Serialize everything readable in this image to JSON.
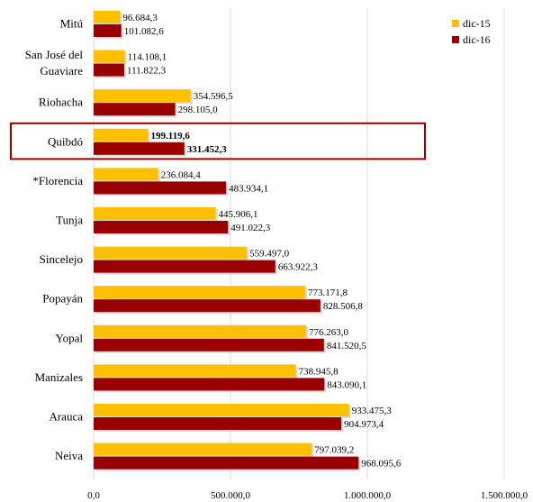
{
  "chart_data": {
    "type": "bar",
    "orientation": "horizontal",
    "categories": [
      "Mitú",
      "San José del Guaviare",
      "Riohacha",
      "Quibdó",
      "*Florencia",
      "Tunja",
      "Sincelejo",
      "Popayán",
      "Yopal",
      "Manizales",
      "Arauca",
      "Neiva"
    ],
    "category_lines": [
      [
        "Mitú"
      ],
      [
        "San José del",
        "Guaviare"
      ],
      [
        "Riohacha"
      ],
      [
        "Quibdó"
      ],
      [
        "*Florencia"
      ],
      [
        "Tunja"
      ],
      [
        "Sincelejo"
      ],
      [
        "Popayán"
      ],
      [
        "Yopal"
      ],
      [
        "Manizales"
      ],
      [
        "Arauca"
      ],
      [
        "Neiva"
      ]
    ],
    "series": [
      {
        "name": "dic-15",
        "color": "#FFC000",
        "values": [
          96684.3,
          114108.1,
          354596.5,
          199119.6,
          236084.4,
          445906.1,
          559497.0,
          773171.8,
          776263.0,
          738945.8,
          933475.3,
          797039.2
        ],
        "labels": [
          "96.684,3",
          "114.108,1",
          "354.596,5",
          "199.119,6",
          "236.084,4",
          "445.906,1",
          "559.497,0",
          "773.171,8",
          "776.263,0",
          "738.945,8",
          "933.475,3",
          "797.039,2"
        ]
      },
      {
        "name": "dic-16",
        "color": "#990000",
        "values": [
          101082.6,
          111822.3,
          298105.0,
          331452.3,
          483934.1,
          491022.3,
          663922.3,
          828506.8,
          841520.5,
          843090.1,
          904973.4,
          968095.6
        ],
        "labels": [
          "101.082,6",
          "111.822,3",
          "298.105,0",
          "331.452,3",
          "483.934,1",
          "491.022,3",
          "663.922,3",
          "828.506,8",
          "841.520,5",
          "843.090,1",
          "904.973,4",
          "968.095,6"
        ]
      }
    ],
    "xlim": [
      0,
      1500000
    ],
    "xticks": [
      0,
      500000,
      1000000,
      1500000
    ],
    "xtick_labels": [
      "0,0",
      "500.000,0",
      "1.000.000,0",
      "1.500.000,0"
    ],
    "grid": "vertical",
    "legend": "top-right",
    "highlight": {
      "category": "Quibdó",
      "label_color": "#990000",
      "box_color": "#990000"
    },
    "title": "",
    "xlabel": "",
    "ylabel": ""
  }
}
